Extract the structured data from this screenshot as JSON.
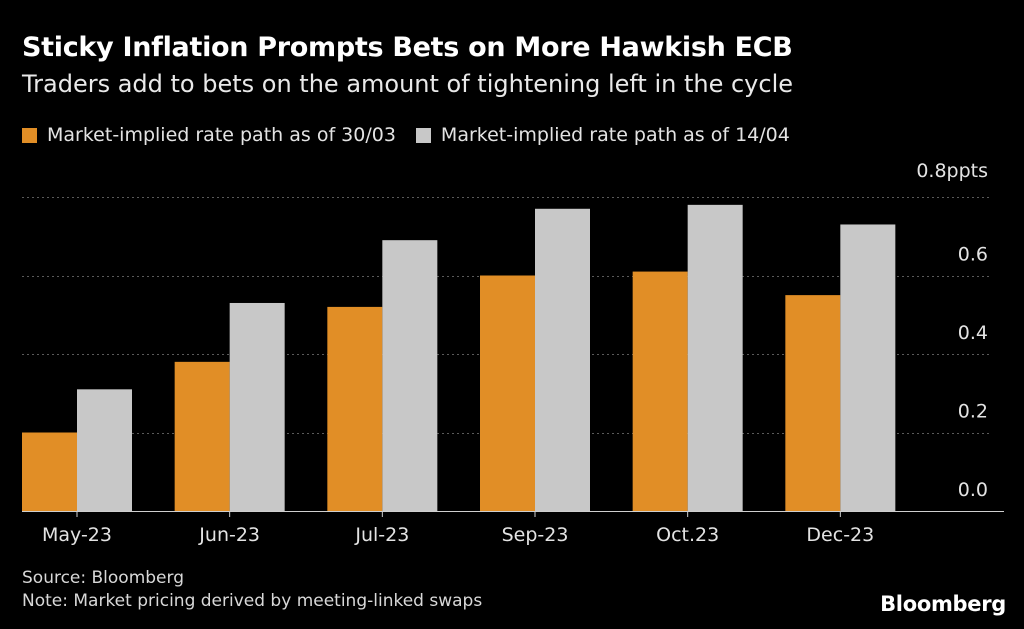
{
  "chart_data": {
    "type": "bar",
    "title": "Sticky Inflation Prompts Bets on More Hawkish ECB",
    "subtitle": "Traders add to bets on the amount of tightening left in the cycle",
    "categories": [
      "May-23",
      "Jun-23",
      "Jul-23",
      "Sep-23",
      "Oct.23",
      "Dec-23"
    ],
    "series": [
      {
        "name": "Market-implied rate path as of 30/03",
        "color": "#E18E26",
        "values": [
          0.2,
          0.38,
          0.52,
          0.6,
          0.61,
          0.55
        ]
      },
      {
        "name": "Market-implied rate path as of 14/04",
        "color": "#C8C8C8",
        "values": [
          0.31,
          0.53,
          0.69,
          0.77,
          0.78,
          0.73
        ]
      }
    ],
    "y_axis": {
      "ticks": [
        "0.0",
        "0.2",
        "0.4",
        "0.6"
      ],
      "top_label": "0.8ppts",
      "ylim": [
        0,
        0.8
      ]
    },
    "xlabel": "",
    "ylabel": "ppts",
    "grid": true,
    "legend_position": "top-left"
  },
  "footer": {
    "source": "Source: Bloomberg",
    "note": "Note: Market pricing derived by meeting-linked swaps",
    "brand": "Bloomberg"
  }
}
